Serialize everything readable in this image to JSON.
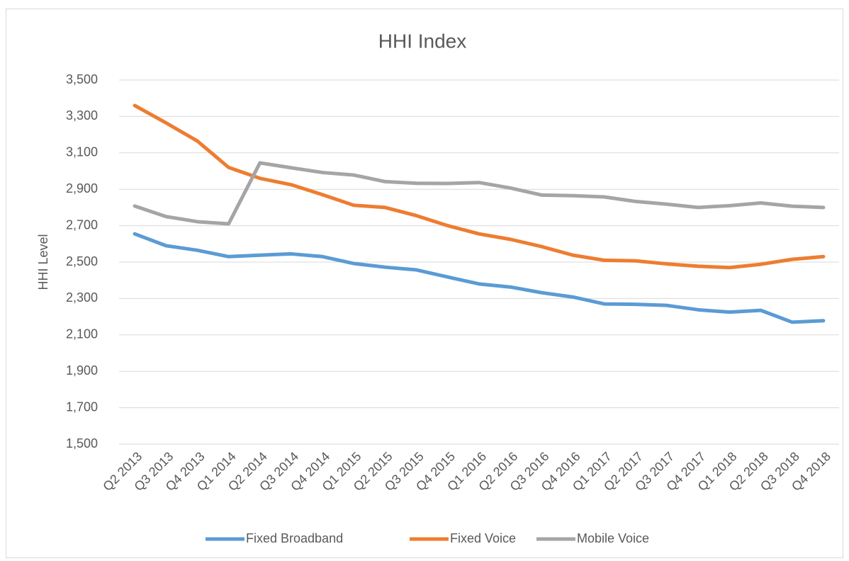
{
  "chart_data": {
    "type": "line",
    "title": "HHI Index",
    "y_label": "HHI Level",
    "categories": [
      "Q2 2013",
      "Q3 2013",
      "Q4 2013",
      "Q1 2014",
      "Q2 2014",
      "Q3 2014",
      "Q4 2014",
      "Q1 2015",
      "Q2 2015",
      "Q3 2015",
      "Q4 2015",
      "Q1 2016",
      "Q2 2016",
      "Q3 2016",
      "Q4 2016",
      "Q1 2017",
      "Q2 2017",
      "Q3 2017",
      "Q4 2017",
      "Q1 2018",
      "Q2 2018",
      "Q3 2018",
      "Q4 2018"
    ],
    "series": [
      {
        "name": "Fixed Broadband",
        "color": "#5b9bd5",
        "values": [
          2655,
          2590,
          2565,
          2530,
          2538,
          2545,
          2530,
          2492,
          2472,
          2457,
          2418,
          2380,
          2363,
          2332,
          2308,
          2270,
          2268,
          2262,
          2238,
          2225,
          2235,
          2170,
          2178
        ]
      },
      {
        "name": "Fixed Voice",
        "color": "#ed7d31",
        "values": [
          3360,
          3265,
          3165,
          3020,
          2960,
          2925,
          2870,
          2812,
          2800,
          2755,
          2700,
          2655,
          2625,
          2585,
          2538,
          2510,
          2507,
          2490,
          2477,
          2470,
          2488,
          2515,
          2530
        ]
      },
      {
        "name": "Mobile Voice",
        "color": "#a5a5a5",
        "values": [
          2808,
          2750,
          2722,
          2710,
          3045,
          3018,
          2992,
          2978,
          2942,
          2933,
          2932,
          2937,
          2907,
          2868,
          2865,
          2858,
          2833,
          2818,
          2800,
          2810,
          2825,
          2807,
          2800
        ]
      }
    ],
    "ylim": [
      1500,
      3500
    ],
    "yticks": [
      {
        "value": 1500,
        "label": "1,500"
      },
      {
        "value": 1700,
        "label": "1,700"
      },
      {
        "value": 1900,
        "label": "1,900"
      },
      {
        "value": 2100,
        "label": "2,100"
      },
      {
        "value": 2300,
        "label": "2,300"
      },
      {
        "value": 2500,
        "label": "2,500"
      },
      {
        "value": 2700,
        "label": "2,700"
      },
      {
        "value": 2900,
        "label": "2,900"
      },
      {
        "value": 3100,
        "label": "3,100"
      },
      {
        "value": 3300,
        "label": "3,300"
      },
      {
        "value": 3500,
        "label": "3,500"
      }
    ],
    "grid": true,
    "legend": "bottom"
  }
}
